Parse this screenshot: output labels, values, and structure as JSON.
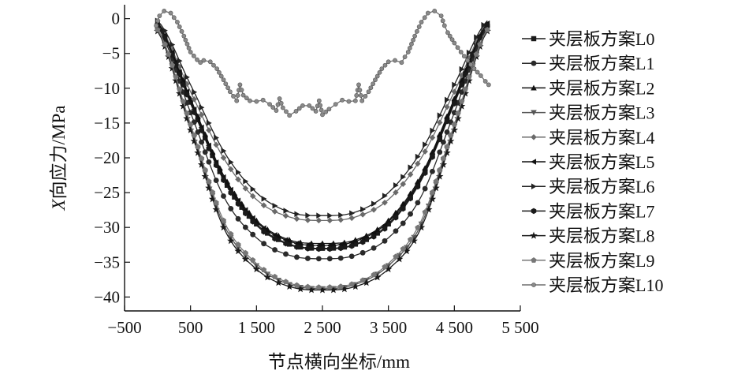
{
  "chart_data": {
    "type": "line",
    "title": "",
    "xlabel": "节点横向坐标/mm",
    "ylabel_italic": "X",
    "ylabel_rest": "向应力/MPa",
    "xlim": [
      -500,
      5500
    ],
    "ylim": [
      -42,
      2
    ],
    "x_ticks": [
      -500,
      500,
      1500,
      2500,
      3500,
      4500,
      5500
    ],
    "x_tick_labels": [
      "−500",
      "500",
      "1 500",
      "2 500",
      "3 500",
      "4 500",
      "5 500"
    ],
    "y_ticks": [
      0,
      -5,
      -10,
      -15,
      -20,
      -25,
      -30,
      -35,
      -40
    ],
    "y_tick_labels": [
      "0",
      "−5",
      "−10",
      "−15",
      "−20",
      "−25",
      "−30",
      "−35",
      "−40"
    ],
    "legend_position": "right",
    "series": [
      {
        "name": "夹层板方案L0",
        "marker": "square",
        "color": "#1a1a1a",
        "x": [
          0,
          500,
          1000,
          1500,
          2000,
          2500,
          3000,
          3500,
          4000,
          4500,
          5000
        ],
        "values": [
          -1.0,
          -12.0,
          -23.0,
          -29.5,
          -32.4,
          -33.0,
          -32.4,
          -29.5,
          -23.0,
          -12.0,
          -1.0
        ]
      },
      {
        "name": "夹层板方案L1",
        "marker": "circle",
        "color": "#2a2a2a",
        "x": [
          0,
          500,
          1000,
          1500,
          2000,
          2500,
          3000,
          3500,
          4000,
          4500,
          5000
        ],
        "values": [
          -1.2,
          -13.5,
          -25.5,
          -31.5,
          -34.0,
          -34.5,
          -34.0,
          -31.5,
          -25.5,
          -13.5,
          -1.2
        ]
      },
      {
        "name": "夹层板方案L2",
        "marker": "triangle-up",
        "color": "#111111",
        "x": [
          0,
          500,
          1000,
          1500,
          2000,
          2500,
          3000,
          3500,
          4000,
          4500,
          5000
        ],
        "values": [
          -0.5,
          -11.5,
          -22.5,
          -29.0,
          -31.8,
          -32.3,
          -31.8,
          -29.0,
          -22.5,
          -11.5,
          -0.5
        ]
      },
      {
        "name": "夹层板方案L3",
        "marker": "triangle-down",
        "color": "#555555",
        "x": [
          0,
          500,
          1000,
          1500,
          2000,
          2500,
          3000,
          3500,
          4000,
          4500,
          5000
        ],
        "values": [
          -1.5,
          -15.5,
          -29.5,
          -35.5,
          -38.2,
          -38.8,
          -38.2,
          -35.5,
          -29.5,
          -15.5,
          -1.5
        ]
      },
      {
        "name": "夹层板方案L4",
        "marker": "diamond",
        "color": "#6a6a6a",
        "x": [
          0,
          500,
          1000,
          1500,
          2000,
          2500,
          3000,
          3500,
          4000,
          4500,
          5000
        ],
        "values": [
          -0.8,
          -10.5,
          -20.0,
          -26.0,
          -28.5,
          -29.0,
          -28.5,
          -26.0,
          -20.0,
          -10.5,
          -0.8
        ]
      },
      {
        "name": "夹层板方案L5",
        "marker": "triangle-left",
        "color": "#111111",
        "x": [
          0,
          500,
          1000,
          1500,
          2000,
          2500,
          3000,
          3500,
          4000,
          4500,
          5000
        ],
        "values": [
          -0.7,
          -11.8,
          -22.8,
          -29.2,
          -32.0,
          -32.6,
          -32.0,
          -29.2,
          -22.8,
          -11.8,
          -0.7
        ]
      },
      {
        "name": "夹层板方案L6",
        "marker": "triangle-right",
        "color": "#222222",
        "x": [
          0,
          500,
          1000,
          1500,
          2000,
          2500,
          3000,
          3500,
          4000,
          4500,
          5000
        ],
        "values": [
          -0.3,
          -9.5,
          -19.0,
          -25.0,
          -27.8,
          -28.3,
          -27.8,
          -25.0,
          -19.0,
          -9.5,
          -0.3
        ]
      },
      {
        "name": "夹层板方案L7",
        "marker": "hexagon",
        "color": "#1a1a1a",
        "x": [
          0,
          500,
          1000,
          1500,
          2000,
          2500,
          3000,
          3500,
          4000,
          4500,
          5000
        ],
        "values": [
          -1.0,
          -12.2,
          -23.2,
          -29.7,
          -32.5,
          -33.1,
          -32.5,
          -29.7,
          -23.2,
          -12.2,
          -1.0
        ]
      },
      {
        "name": "夹层板方案L8",
        "marker": "star",
        "color": "#1a1a1a",
        "x": [
          0,
          500,
          1000,
          1500,
          2000,
          2500,
          3000,
          3500,
          4000,
          4500,
          5000
        ],
        "values": [
          -1.8,
          -16.0,
          -30.0,
          -36.0,
          -38.5,
          -39.0,
          -38.5,
          -36.0,
          -30.0,
          -16.0,
          -1.8
        ]
      },
      {
        "name": "夹层板方案L9",
        "marker": "pentagon",
        "color": "#777777",
        "x": [
          0,
          500,
          1000,
          1500,
          2000,
          2500,
          3000,
          3500,
          4000,
          4500,
          5000
        ],
        "values": [
          -1.6,
          -15.2,
          -29.0,
          -35.2,
          -38.0,
          -38.6,
          -38.0,
          -35.2,
          -29.0,
          -15.2,
          -1.6
        ]
      },
      {
        "name": "夹层板方案L10",
        "marker": "small-circle",
        "color": "#6e6e6e",
        "x": [
          -20,
          30,
          100,
          200,
          300,
          400,
          500,
          600,
          650,
          700,
          800,
          900,
          1000,
          1100,
          1200,
          1250,
          1300,
          1400,
          1500,
          1600,
          1700,
          1800,
          1850,
          1900,
          2000,
          2100,
          2200,
          2300,
          2400,
          2450,
          2500,
          2600,
          2700,
          2800,
          2900,
          3000,
          3050,
          3100,
          3200,
          3300,
          3400,
          3500,
          3600,
          3700,
          3750,
          3800,
          3900,
          4000,
          4100,
          4200,
          4300,
          4350,
          4400,
          4500,
          4600,
          4700,
          4800,
          4900,
          4970,
          5020
        ],
        "values": [
          -1.0,
          0.4,
          1.1,
          0.8,
          -0.5,
          -2.5,
          -4.8,
          -5.9,
          -6.3,
          -6.0,
          -6.2,
          -7.2,
          -8.8,
          -10.5,
          -11.8,
          -9.5,
          -11.0,
          -11.8,
          -11.9,
          -11.7,
          -12.3,
          -13.2,
          -11.5,
          -12.8,
          -13.9,
          -13.3,
          -12.5,
          -12.5,
          -13.3,
          -11.8,
          -13.8,
          -13.0,
          -12.3,
          -11.7,
          -11.9,
          -11.8,
          -9.5,
          -11.8,
          -10.5,
          -8.8,
          -7.2,
          -6.2,
          -6.0,
          -6.3,
          -5.5,
          -4.8,
          -2.5,
          -0.5,
          0.8,
          1.1,
          0.4,
          -1.0,
          -2.0,
          -3.5,
          -4.8,
          -6.0,
          -7.2,
          -8.2,
          -9.0,
          -9.5
        ]
      }
    ]
  }
}
